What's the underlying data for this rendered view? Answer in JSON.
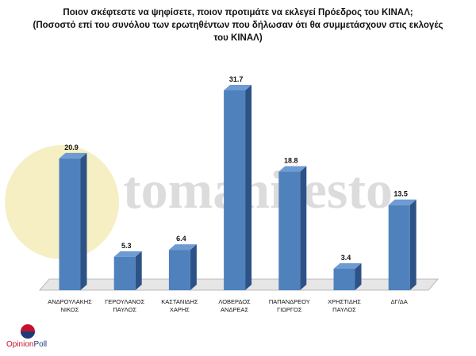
{
  "chart_data": {
    "type": "bar3d",
    "title": "Ποιον σκέφτεστε να ψηφίσετε, ποιον προτιμάτε να εκλεγεί Πρόεδρος του ΚΙΝΑΛ;",
    "subtitle": "(Ποσοστό επί του συνόλου των ερωτηθέντων που δήλωσαν ότι θα συμμετάσχουν στις εκλογές του ΚΙΝΑΛ)",
    "categories": [
      "ΑΝΔΡΟΥΛΑΚΗΣ\nΝΙΚΟΣ",
      "ΓΕΡΟΥΛΑΝΟΣ\nΠΑΥΛΟΣ",
      "ΚΑΣΤΑΝΙΔΗΣ\nΧΑΡΗΣ",
      "ΛΟΒΕΡΔΟΣ\nΑΝΔΡΕΑΣ",
      "ΠΑΠΑΝΔΡΕΟΥ\nΓΙΩΡΓΟΣ",
      "ΧΡΗΣΤΙΔΗΣ\nΠΑΥΛΟΣ",
      "ΔΓ/ΔΑ"
    ],
    "values": [
      20.9,
      5.3,
      6.4,
      31.7,
      18.8,
      3.4,
      13.5
    ],
    "color": "#4f81bd",
    "watermark": "tomanifesto",
    "logo": [
      "Opinion",
      "Poll"
    ]
  }
}
